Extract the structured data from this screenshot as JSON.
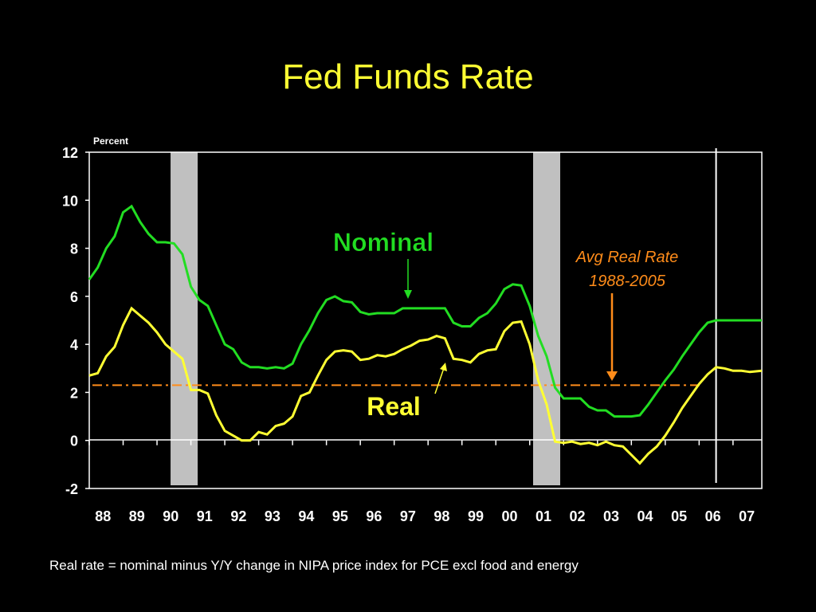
{
  "slide": {
    "title": "Fed Funds Rate",
    "footnote": "Real rate = nominal minus Y/Y change in NIPA price index for PCE excl food and energy"
  },
  "colors": {
    "background": "#000000",
    "title": "#ffff33",
    "nominal": "#22dd22",
    "real": "#ffff33",
    "average": "#ff8c1a",
    "recession": "#c0c0c0",
    "axis": "#ffffff"
  },
  "chart_data": {
    "type": "line",
    "title": "",
    "ylabel": "Percent",
    "ylim": [
      -2,
      12
    ],
    "yticks": [
      -2,
      0,
      2,
      4,
      6,
      8,
      10,
      12
    ],
    "xlim": [
      1988,
      2007.85
    ],
    "xtick_labels": [
      "88",
      "89",
      "90",
      "91",
      "92",
      "93",
      "94",
      "95",
      "96",
      "97",
      "98",
      "99",
      "00",
      "01",
      "02",
      "03",
      "04",
      "05",
      "06",
      "07"
    ],
    "grid": false,
    "series": [
      {
        "name": "Nominal",
        "x": [
          1988.0,
          1988.25,
          1988.5,
          1988.75,
          1989.0,
          1989.25,
          1989.5,
          1989.75,
          1990.0,
          1990.25,
          1990.5,
          1990.75,
          1991.0,
          1991.25,
          1991.5,
          1991.75,
          1992.0,
          1992.25,
          1992.5,
          1992.75,
          1993.0,
          1993.25,
          1993.5,
          1993.75,
          1994.0,
          1994.25,
          1994.5,
          1994.75,
          1995.0,
          1995.25,
          1995.5,
          1995.75,
          1996.0,
          1996.25,
          1996.5,
          1996.75,
          1997.0,
          1997.25,
          1997.5,
          1997.75,
          1998.0,
          1998.25,
          1998.5,
          1998.75,
          1999.0,
          1999.25,
          1999.5,
          1999.75,
          2000.0,
          2000.25,
          2000.5,
          2000.75,
          2001.0,
          2001.25,
          2001.5,
          2001.75,
          2002.0,
          2002.25,
          2002.5,
          2002.75,
          2003.0,
          2003.25,
          2003.5,
          2003.75,
          2004.0,
          2004.25,
          2004.5,
          2004.75,
          2005.0,
          2005.25,
          2005.5,
          2005.75,
          2006.0,
          2006.25,
          2006.5,
          2006.75,
          2007.0,
          2007.25,
          2007.5,
          2007.85
        ],
        "values": [
          6.7,
          7.2,
          8.0,
          8.5,
          9.5,
          9.75,
          9.1,
          8.6,
          8.25,
          8.25,
          8.2,
          7.75,
          6.4,
          5.85,
          5.6,
          4.8,
          4.0,
          3.8,
          3.25,
          3.05,
          3.05,
          3.0,
          3.05,
          3.0,
          3.2,
          4.0,
          4.6,
          5.3,
          5.85,
          6.0,
          5.8,
          5.75,
          5.35,
          5.25,
          5.3,
          5.3,
          5.3,
          5.5,
          5.5,
          5.5,
          5.5,
          5.5,
          5.5,
          4.9,
          4.75,
          4.75,
          5.1,
          5.3,
          5.7,
          6.3,
          6.5,
          6.45,
          5.6,
          4.35,
          3.5,
          2.2,
          1.75,
          1.75,
          1.75,
          1.4,
          1.25,
          1.25,
          1.0,
          1.0,
          1.0,
          1.05,
          1.5,
          2.0,
          2.5,
          2.95,
          3.5,
          4.0,
          4.5,
          4.9,
          5.0,
          5.0,
          5.0,
          5.0,
          5.0,
          5.0
        ]
      },
      {
        "name": "Real",
        "x": [
          1988.0,
          1988.25,
          1988.5,
          1988.75,
          1989.0,
          1989.25,
          1989.5,
          1989.75,
          1990.0,
          1990.25,
          1990.5,
          1990.75,
          1991.0,
          1991.25,
          1991.5,
          1991.75,
          1992.0,
          1992.25,
          1992.5,
          1992.75,
          1993.0,
          1993.25,
          1993.5,
          1993.75,
          1994.0,
          1994.25,
          1994.5,
          1994.75,
          1995.0,
          1995.25,
          1995.5,
          1995.75,
          1996.0,
          1996.25,
          1996.5,
          1996.75,
          1997.0,
          1997.25,
          1997.5,
          1997.75,
          1998.0,
          1998.25,
          1998.5,
          1998.75,
          1999.0,
          1999.25,
          1999.5,
          1999.75,
          2000.0,
          2000.25,
          2000.5,
          2000.75,
          2001.0,
          2001.25,
          2001.5,
          2001.75,
          2002.0,
          2002.25,
          2002.5,
          2002.75,
          2003.0,
          2003.25,
          2003.5,
          2003.75,
          2004.0,
          2004.25,
          2004.5,
          2004.75,
          2005.0,
          2005.25,
          2005.5,
          2005.75,
          2006.0,
          2006.25,
          2006.5,
          2006.75,
          2007.0,
          2007.25,
          2007.5,
          2007.85
        ],
        "values": [
          2.7,
          2.8,
          3.5,
          3.9,
          4.8,
          5.5,
          5.2,
          4.9,
          4.5,
          4.0,
          3.7,
          3.4,
          2.1,
          2.1,
          1.95,
          1.05,
          0.4,
          0.2,
          0.0,
          0.0,
          0.35,
          0.25,
          0.6,
          0.7,
          1.0,
          1.85,
          2.0,
          2.7,
          3.35,
          3.7,
          3.75,
          3.7,
          3.35,
          3.4,
          3.55,
          3.5,
          3.6,
          3.8,
          3.95,
          4.15,
          4.2,
          4.35,
          4.25,
          3.4,
          3.35,
          3.25,
          3.6,
          3.75,
          3.8,
          4.55,
          4.9,
          4.95,
          4.0,
          2.5,
          1.5,
          -0.05,
          -0.1,
          -0.05,
          -0.15,
          -0.1,
          -0.2,
          -0.05,
          -0.2,
          -0.25,
          -0.6,
          -0.95,
          -0.55,
          -0.25,
          0.2,
          0.75,
          1.35,
          1.85,
          2.35,
          2.75,
          3.05,
          3.0,
          2.9,
          2.9,
          2.85,
          2.9
        ]
      }
    ],
    "recession_bands": [
      [
        1990.4,
        1991.2
      ],
      [
        2001.1,
        2001.9
      ]
    ],
    "reference_line": {
      "y": 2.3,
      "style": "dash-dot"
    },
    "marker_line": {
      "x": 2006.5
    },
    "annotations": {
      "nominal_label": "Nominal",
      "real_label": "Real",
      "avg_label_line1": "Avg Real Rate",
      "avg_label_line2": "1988-2005"
    }
  }
}
